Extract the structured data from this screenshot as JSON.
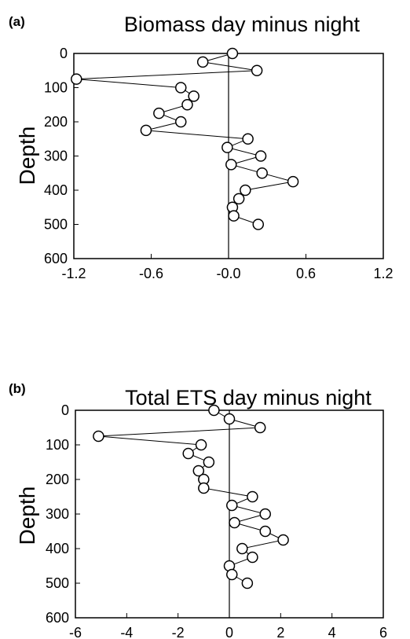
{
  "chart_data": [
    {
      "type": "line",
      "panel_label": "(a)",
      "title": "Biomass day minus night",
      "ylabel": "Depth",
      "xlabel": "",
      "xlim": [
        -1.2,
        1.2
      ],
      "ylim": [
        0,
        600
      ],
      "y_inverted": true,
      "x_ticks": [
        "-1.2",
        "-0.6",
        "-0.0",
        "0.6",
        "1.2"
      ],
      "y_ticks": [
        "0",
        "100",
        "200",
        "300",
        "400",
        "500",
        "600"
      ],
      "zero_line": true,
      "marker": "open-circle",
      "series": [
        {
          "x": [
            0.03,
            -0.2,
            0.22,
            -1.18,
            -0.37,
            -0.27,
            -0.32,
            -0.54,
            -0.37,
            -0.64,
            0.15,
            -0.01,
            0.25,
            0.02,
            0.26,
            0.5,
            0.13,
            0.08,
            0.03,
            0.04,
            0.23
          ],
          "y": [
            0,
            25,
            50,
            75,
            100,
            125,
            150,
            175,
            200,
            225,
            250,
            275,
            300,
            325,
            350,
            375,
            400,
            425,
            450,
            475,
            500
          ]
        }
      ]
    },
    {
      "type": "line",
      "panel_label": "(b)",
      "title": "Total ETS day minus night",
      "ylabel": "Depth",
      "xlabel": "",
      "xlim": [
        -6,
        6
      ],
      "ylim": [
        0,
        600
      ],
      "y_inverted": true,
      "x_ticks": [
        "-6",
        "-4",
        "-2",
        "0",
        "2",
        "4",
        "6"
      ],
      "y_ticks": [
        "0",
        "100",
        "200",
        "300",
        "400",
        "500",
        "600"
      ],
      "zero_line": true,
      "marker": "open-circle",
      "series": [
        {
          "x": [
            -0.6,
            0.0,
            1.2,
            -5.1,
            -1.1,
            -1.6,
            -0.8,
            -1.2,
            -1.0,
            -1.0,
            0.9,
            0.1,
            1.4,
            0.2,
            1.4,
            2.1,
            0.5,
            0.9,
            0.0,
            0.1,
            0.7
          ],
          "y": [
            0,
            25,
            50,
            75,
            100,
            125,
            150,
            175,
            200,
            225,
            250,
            275,
            300,
            325,
            350,
            375,
            400,
            425,
            450,
            475,
            500
          ]
        }
      ]
    }
  ]
}
